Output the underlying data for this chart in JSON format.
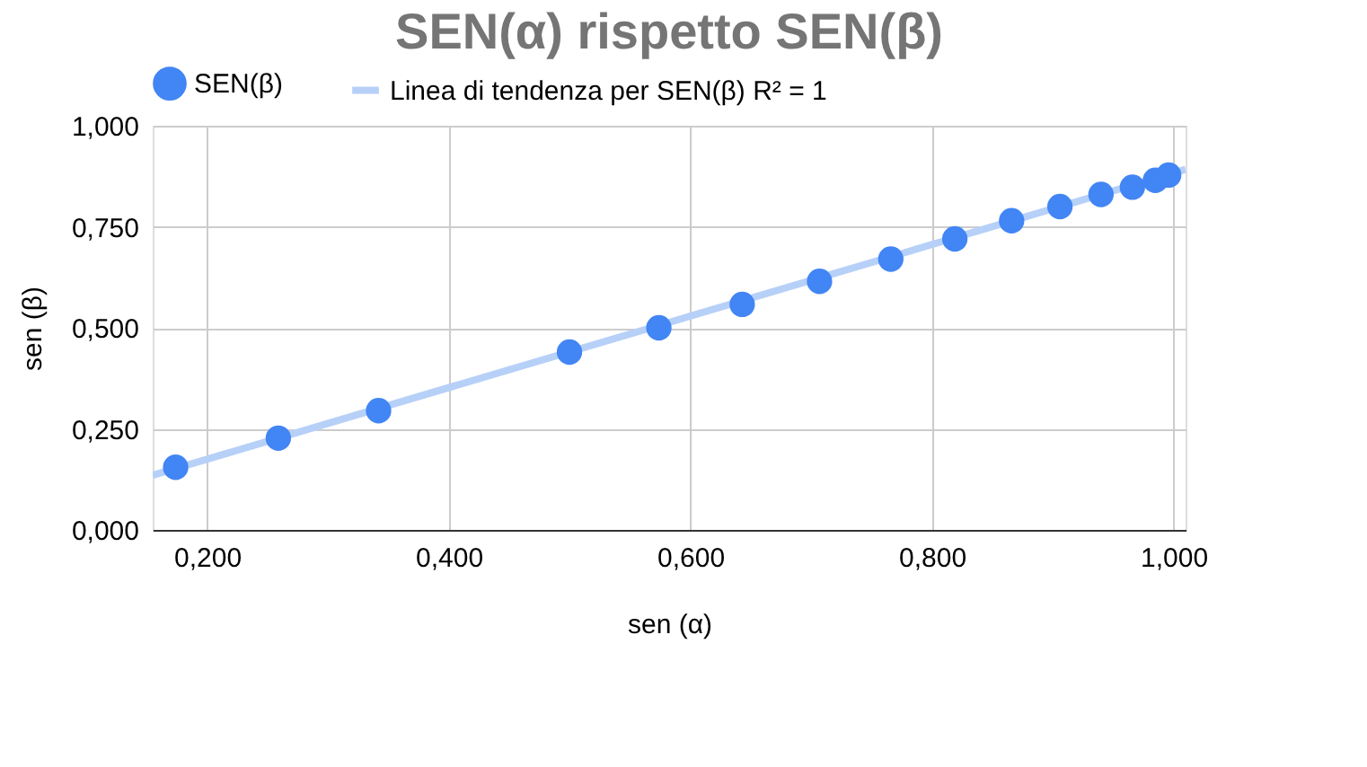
{
  "chart_data": {
    "type": "scatter",
    "title": "SEN(α) rispetto SEN(β)",
    "xlabel": "sen (α)",
    "ylabel": "sen  (β)",
    "x": [
      0.174,
      0.259,
      0.342,
      0.5,
      0.574,
      0.643,
      0.707,
      0.766,
      0.819,
      0.866,
      0.906,
      0.94,
      0.966,
      0.985,
      0.996
    ],
    "series": [
      {
        "name": "SEN(β)",
        "color": "#4285f4",
        "marker": "circle",
        "values": [
          0.155,
          0.227,
          0.295,
          0.44,
          0.5,
          0.558,
          0.615,
          0.67,
          0.72,
          0.765,
          0.8,
          0.83,
          0.848,
          0.865,
          0.878
        ]
      },
      {
        "name": "Linea di tendenza per SEN(β) R² = 1",
        "color": "#b6d0f8",
        "type": "line",
        "line_style": "solid",
        "x": [
          0.155,
          1.01
        ],
        "values": [
          0.135,
          0.892
        ]
      }
    ],
    "xlim": [
      0.155,
      1.01
    ],
    "ylim": [
      0,
      1
    ],
    "xticks": [
      {
        "value": 0.2,
        "label": "0,200"
      },
      {
        "value": 0.4,
        "label": "0,400"
      },
      {
        "value": 0.6,
        "label": "0,600"
      },
      {
        "value": 0.8,
        "label": "0,800"
      },
      {
        "value": 1.0,
        "label": "1,000"
      }
    ],
    "yticks": [
      {
        "value": 0,
        "label": "0,000"
      },
      {
        "value": 0.25,
        "label": "0,250"
      },
      {
        "value": 0.5,
        "label": "0,500"
      },
      {
        "value": 0.75,
        "label": "0,750"
      },
      {
        "value": 1.0,
        "label": "1,000"
      }
    ],
    "grid": true,
    "legend": "top left"
  }
}
